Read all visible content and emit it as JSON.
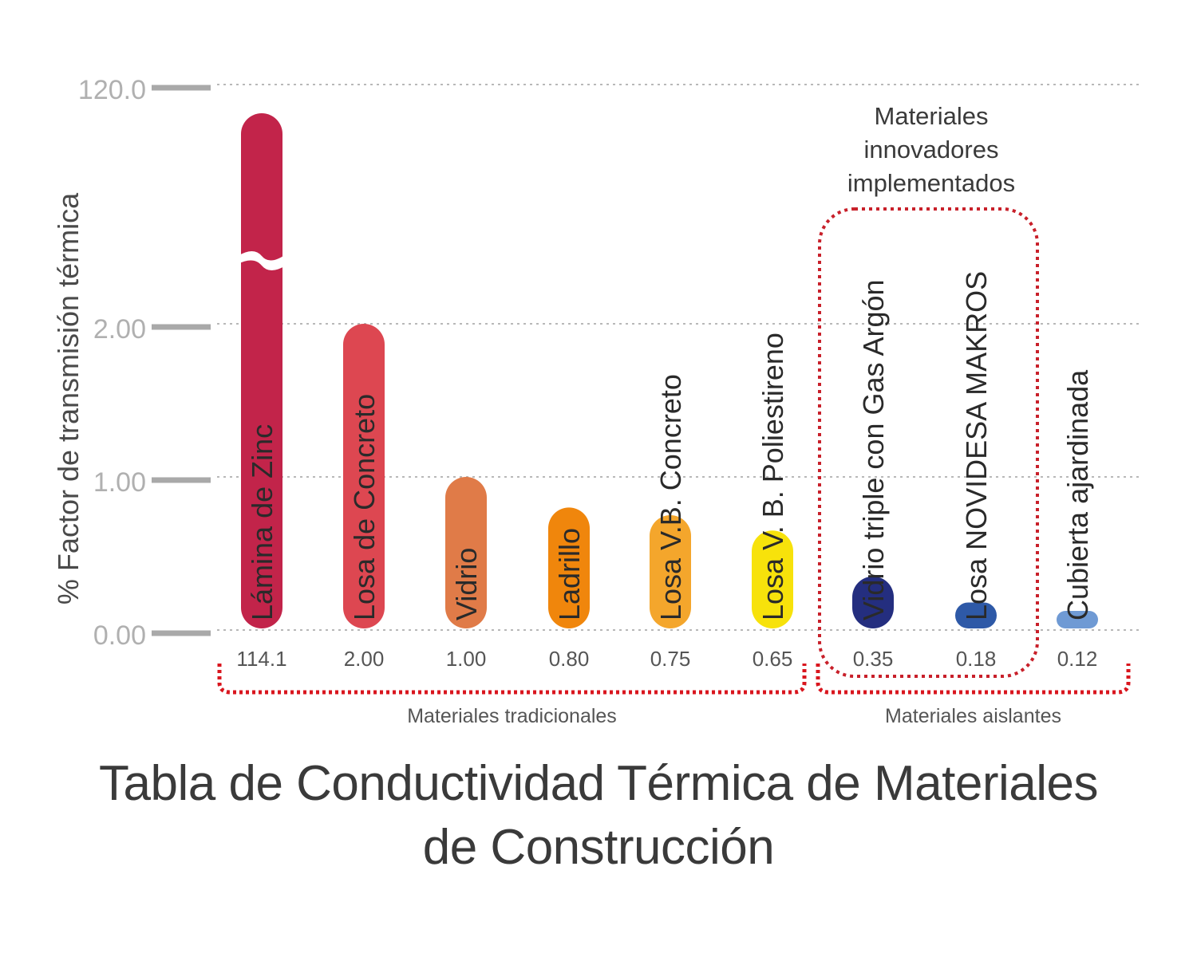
{
  "chart_data": {
    "type": "bar",
    "title": "Tabla de Conductividad Térmica de Materiales",
    "title_line2": "de Construcción",
    "ylabel": "% Factor de transmisión térmica",
    "y_ticks": [
      "0.00",
      "1.00",
      "2.00",
      "120.0"
    ],
    "y_scale": "broken axis (0–2 linear, break to 120.0)",
    "grid": true,
    "categories": [
      "Lámina de Zinc",
      "Losa de Concreto",
      "Vidrio",
      "Ladrillo",
      "Losa V.B. Concreto",
      "Losa V. B. Poliestireno",
      "Vidrio triple con Gas Argón",
      "Losa NOVIDESA MAKROS",
      "Cubierta ajardinada"
    ],
    "values": [
      114.1,
      2.0,
      1.0,
      0.8,
      0.75,
      0.65,
      0.35,
      0.18,
      0.12
    ],
    "value_labels": [
      "114.1",
      "2.00",
      "1.00",
      "0.80",
      "0.75",
      "0.65",
      "0.35",
      "0.18",
      "0.12"
    ],
    "colors": [
      "#c2244a",
      "#dd4751",
      "#e07b48",
      "#f0860c",
      "#f4a62c",
      "#f7e20b",
      "#242e7f",
      "#2e59a7",
      "#6f9ad4"
    ],
    "groups": [
      {
        "label": "Materiales tradicionales",
        "from": 0,
        "to": 5
      },
      {
        "label": "Materiales aislantes",
        "from": 6,
        "to": 8
      }
    ],
    "highlight": {
      "label": "Materiales innovadores implementados",
      "lines": [
        "Materiales",
        "innovadores",
        "implementados"
      ],
      "from": 6,
      "to": 7
    }
  }
}
